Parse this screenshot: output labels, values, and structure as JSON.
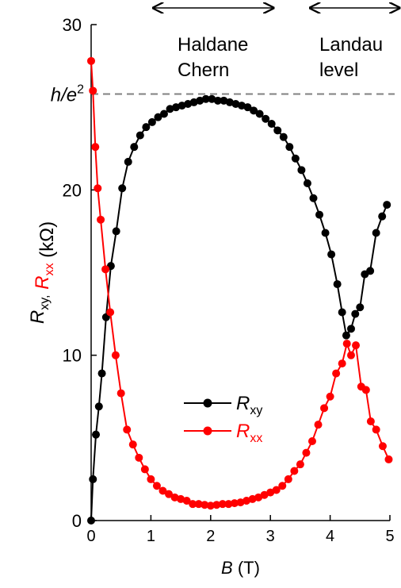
{
  "chart_data": {
    "type": "line",
    "xlabel": "B",
    "xunit": "(T)",
    "ylabel_parts": [
      {
        "text": "R",
        "sub": "xy,",
        "color": "#000000"
      },
      {
        "text": " R",
        "sub": "xx",
        "color": "#ff0000"
      },
      {
        "text": " (kΩ)",
        "sub": "",
        "color": "#000000"
      }
    ],
    "xlim": [
      0,
      5
    ],
    "ylim": [
      0,
      30
    ],
    "xticks": [
      0,
      1,
      2,
      3,
      4,
      5
    ],
    "yticks": [
      0,
      10,
      20,
      30
    ],
    "reference_line": {
      "label": "h/e",
      "superscript": "2",
      "y": 25.8,
      "style": "dashed",
      "color": "#808080"
    },
    "annotations": [
      {
        "lines": [
          "Haldane",
          "Chern"
        ],
        "arrow_x_range": [
          1.0,
          3.05
        ]
      },
      {
        "lines": [
          "Landau",
          "level"
        ],
        "arrow_x_range": [
          3.85,
          5.0
        ]
      }
    ],
    "legend": {
      "placement": "lower-center"
    },
    "series": [
      {
        "name": "R",
        "name_sub": "xy",
        "color": "#000000",
        "x": [
          0.0,
          0.03,
          0.08,
          0.13,
          0.18,
          0.25,
          0.33,
          0.42,
          0.52,
          0.62,
          0.72,
          0.82,
          0.92,
          1.02,
          1.12,
          1.22,
          1.32,
          1.42,
          1.52,
          1.62,
          1.72,
          1.82,
          1.92,
          2.02,
          2.12,
          2.22,
          2.32,
          2.42,
          2.52,
          2.62,
          2.72,
          2.82,
          2.92,
          3.02,
          3.12,
          3.22,
          3.32,
          3.42,
          3.52,
          3.62,
          3.72,
          3.82,
          3.92,
          4.02,
          4.12,
          4.2,
          4.27,
          4.35,
          4.42,
          4.5,
          4.58,
          4.67,
          4.77,
          4.87,
          4.95
        ],
        "y": [
          0.0,
          2.5,
          5.2,
          6.9,
          8.9,
          12.3,
          15.4,
          17.5,
          20.1,
          21.7,
          22.6,
          23.3,
          23.8,
          24.1,
          24.4,
          24.6,
          24.9,
          25.0,
          25.1,
          25.2,
          25.3,
          25.4,
          25.5,
          25.5,
          25.4,
          25.4,
          25.3,
          25.2,
          25.1,
          25.0,
          24.8,
          24.6,
          24.3,
          24.0,
          23.6,
          23.2,
          22.6,
          21.9,
          21.2,
          20.4,
          19.5,
          18.5,
          17.4,
          16.1,
          14.3,
          12.6,
          11.2,
          11.6,
          12.5,
          12.9,
          14.9,
          15.1,
          17.4,
          18.4,
          19.1
        ]
      },
      {
        "name": "R",
        "name_sub": "xx",
        "color": "#ff0000",
        "x": [
          0.0,
          0.03,
          0.07,
          0.11,
          0.16,
          0.24,
          0.32,
          0.41,
          0.5,
          0.6,
          0.7,
          0.8,
          0.9,
          1.0,
          1.1,
          1.2,
          1.3,
          1.4,
          1.5,
          1.6,
          1.7,
          1.8,
          1.9,
          2.0,
          2.1,
          2.2,
          2.3,
          2.4,
          2.5,
          2.6,
          2.7,
          2.8,
          2.9,
          3.0,
          3.1,
          3.2,
          3.3,
          3.4,
          3.5,
          3.6,
          3.7,
          3.8,
          3.9,
          4.0,
          4.1,
          4.2,
          4.28,
          4.35,
          4.43,
          4.52,
          4.6,
          4.68,
          4.77,
          4.88,
          4.98
        ],
        "y": [
          27.8,
          26.0,
          22.6,
          20.1,
          18.2,
          15.2,
          12.6,
          10.0,
          7.7,
          5.5,
          4.6,
          3.8,
          3.1,
          2.5,
          2.1,
          1.8,
          1.6,
          1.4,
          1.3,
          1.2,
          1.0,
          1.0,
          0.95,
          0.9,
          0.95,
          1.0,
          1.0,
          1.05,
          1.1,
          1.2,
          1.3,
          1.4,
          1.55,
          1.7,
          1.85,
          2.1,
          2.5,
          3.0,
          3.4,
          4.1,
          4.8,
          5.8,
          6.8,
          7.5,
          8.9,
          9.5,
          10.7,
          10.0,
          10.6,
          8.1,
          7.9,
          6.0,
          5.5,
          4.5,
          3.7
        ]
      }
    ]
  }
}
